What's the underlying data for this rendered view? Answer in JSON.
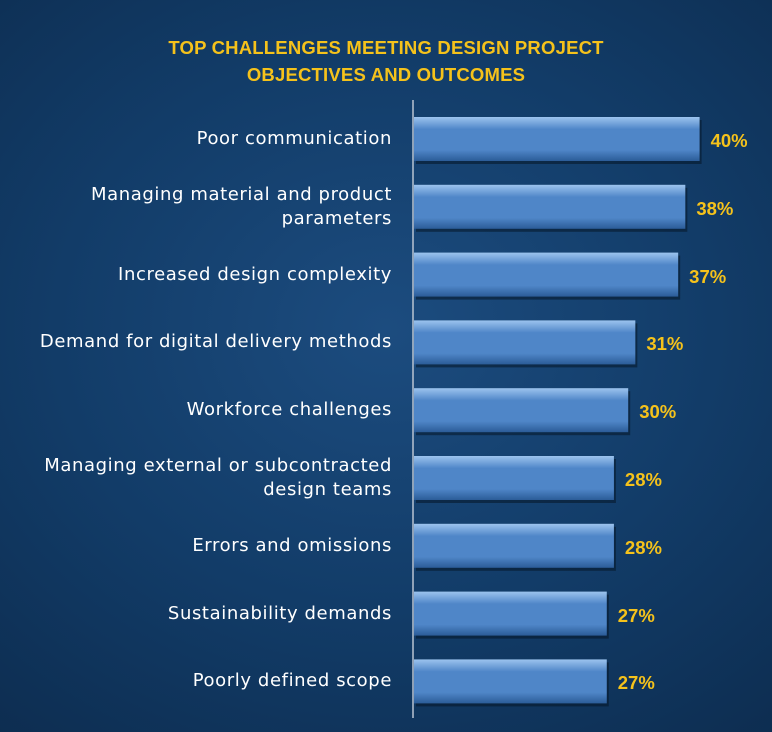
{
  "chart_data": {
    "type": "bar",
    "orientation": "horizontal",
    "title_lines": [
      "TOP CHALLENGES MEETING DESIGN PROJECT",
      "OBJECTIVES AND OUTCOMES"
    ],
    "categories": [
      [
        "Poor communication"
      ],
      [
        "Managing material and product",
        "parameters"
      ],
      [
        "Increased design complexity"
      ],
      [
        "Demand for digital delivery methods"
      ],
      [
        "Workforce challenges"
      ],
      [
        "Managing external or subcontracted",
        "design teams"
      ],
      [
        "Errors and omissions"
      ],
      [
        "Sustainability demands"
      ],
      [
        "Poorly defined scope"
      ]
    ],
    "values": [
      40,
      38,
      37,
      31,
      30,
      28,
      28,
      27,
      27
    ],
    "value_labels": [
      "40%",
      "38%",
      "37%",
      "31%",
      "30%",
      "28%",
      "28%",
      "27%",
      "27%"
    ],
    "value_unit": "%",
    "grid": false,
    "legend": "none",
    "colors": {
      "bar": "#4f86c8",
      "bar_highlight": "#9cc4ee",
      "bar_shadow": "#2b5c98",
      "value_label": "#f5c21b",
      "title": "#f5c21b",
      "axis": "#b9c4d2",
      "category_label": "#ffffff"
    }
  }
}
